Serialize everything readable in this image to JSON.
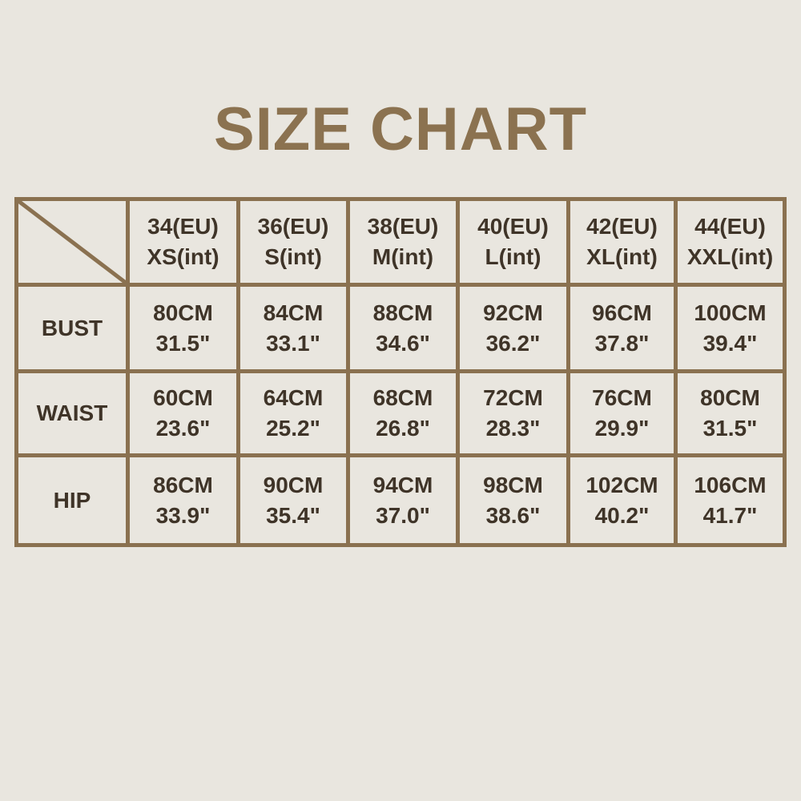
{
  "title": "SIZE CHART",
  "colors": {
    "background": "#e9e6df",
    "border": "#8a7150",
    "title": "#8b7250",
    "text": "#3f3428"
  },
  "columns": [
    {
      "eu": "34(EU)",
      "int": "XS(int)"
    },
    {
      "eu": "36(EU)",
      "int": "S(int)"
    },
    {
      "eu": "38(EU)",
      "int": "M(int)"
    },
    {
      "eu": "40(EU)",
      "int": "L(int)"
    },
    {
      "eu": "42(EU)",
      "int": "XL(int)"
    },
    {
      "eu": "44(EU)",
      "int": "XXL(int)"
    }
  ],
  "rows": [
    {
      "label": "BUST",
      "cells": [
        [
          "80CM",
          "31.5\""
        ],
        [
          "84CM",
          "33.1\""
        ],
        [
          "88CM",
          "34.6\""
        ],
        [
          "92CM",
          "36.2\""
        ],
        [
          "96CM",
          "37.8\""
        ],
        [
          "100CM",
          "39.4\""
        ]
      ]
    },
    {
      "label": "WAIST",
      "cells": [
        [
          "60CM",
          "23.6\""
        ],
        [
          "64CM",
          "25.2\""
        ],
        [
          "68CM",
          "26.8\""
        ],
        [
          "72CM",
          "28.3\""
        ],
        [
          "76CM",
          "29.9\""
        ],
        [
          "80CM",
          "31.5\""
        ]
      ]
    },
    {
      "label": "HIP",
      "cells": [
        [
          "86CM",
          "33.9\""
        ],
        [
          "90CM",
          "35.4\""
        ],
        [
          "94CM",
          "37.0\""
        ],
        [
          "98CM",
          "38.6\""
        ],
        [
          "102CM",
          "40.2\""
        ],
        [
          "106CM",
          "41.7\""
        ]
      ]
    }
  ]
}
